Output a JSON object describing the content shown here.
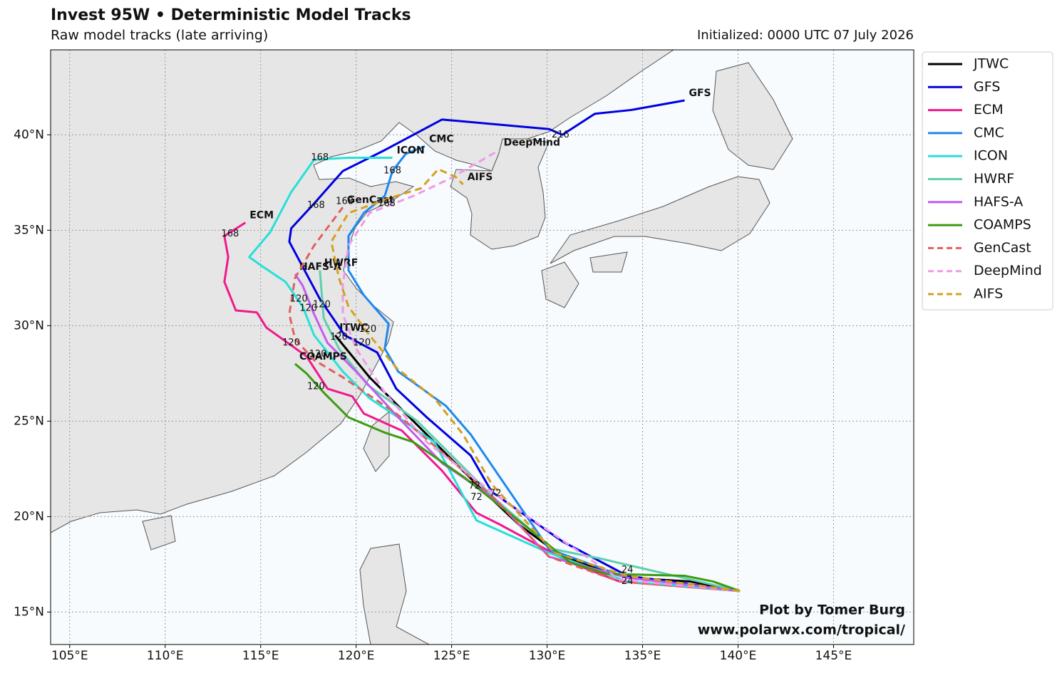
{
  "chart_data": {
    "type": "track",
    "title": "Invest 95W • Deterministic Model Tracks",
    "subtitle": "Raw model tracks (late arriving)",
    "init": "Initialized: 0000 UTC 07 July 2026",
    "credit": [
      "Plot by Tomer Burg",
      "www.polarwx.com/tropical/"
    ],
    "xlim": [
      104.0,
      149.2
    ],
    "ylim": [
      13.3,
      44.45
    ],
    "xticks": [
      {
        "value": 105,
        "label": "105°E"
      },
      {
        "value": 110,
        "label": "110°E"
      },
      {
        "value": 115,
        "label": "115°E"
      },
      {
        "value": 120,
        "label": "120°E"
      },
      {
        "value": 125,
        "label": "125°E"
      },
      {
        "value": 130,
        "label": "130°E"
      },
      {
        "value": 135,
        "label": "135°E"
      },
      {
        "value": 140,
        "label": "140°E"
      },
      {
        "value": 145,
        "label": "145°E"
      }
    ],
    "yticks": [
      {
        "value": 15,
        "label": "15°N"
      },
      {
        "value": 20,
        "label": "20°N"
      },
      {
        "value": 25,
        "label": "25°N"
      },
      {
        "value": 30,
        "label": "30°N"
      },
      {
        "value": 35,
        "label": "35°N"
      },
      {
        "value": 40,
        "label": "40°N"
      }
    ],
    "grid": true,
    "legend": "outside-right",
    "series": [
      {
        "name": "JTWC",
        "color": "#000000",
        "dash": false,
        "x": [
          140.1,
          137.5,
          134.2,
          130.8,
          128.5,
          126.7,
          123.7,
          120.7,
          118.9
        ],
        "values": [
          16.1,
          16.6,
          16.8,
          17.9,
          19.6,
          21.3,
          24.3,
          27.3,
          29.5
        ]
      },
      {
        "name": "GFS",
        "color": "#0000e0",
        "dash": false,
        "x": [
          140.1,
          134.2,
          130.8,
          128.95,
          127.1,
          126.0,
          123.7,
          122.1,
          121.1,
          119.4,
          118.1,
          116.5,
          116.6,
          117.8,
          119.3,
          121.5,
          124.5,
          130.1,
          130.8,
          132.5,
          134.4,
          137.2
        ],
        "values": [
          16.1,
          16.9,
          18.7,
          20.0,
          21.3,
          23.2,
          25.2,
          26.7,
          28.6,
          29.5,
          31.4,
          34.4,
          35.1,
          36.4,
          38.1,
          39.2,
          40.8,
          40.3,
          40.0,
          41.1,
          41.3,
          41.8
        ]
      },
      {
        "name": "ECM",
        "color": "#f0198c",
        "dash": false,
        "x": [
          140.1,
          133.8,
          131.2,
          127.5,
          126.3,
          124.5,
          122.4,
          120.4,
          119.8,
          118.5,
          117.4,
          115.3,
          114.8,
          113.7,
          113.1,
          113.3,
          113.1,
          114.2
        ],
        "values": [
          16.1,
          16.6,
          17.6,
          19.6,
          20.2,
          22.4,
          24.5,
          25.4,
          26.3,
          26.7,
          28.4,
          29.9,
          30.7,
          30.8,
          32.3,
          33.6,
          34.7,
          35.4
        ]
      },
      {
        "name": "CMC",
        "color": "#1e88f0",
        "dash": false,
        "x": [
          140.1,
          134.2,
          130.1,
          126.0,
          124.7,
          122.2,
          121.5,
          121.7,
          120.4,
          119.6,
          119.6,
          120.4,
          121.5,
          121.9,
          122.6,
          123.6
        ],
        "values": [
          16.1,
          16.8,
          18.3,
          24.3,
          25.8,
          27.6,
          28.8,
          30.1,
          31.6,
          32.9,
          34.7,
          35.9,
          36.8,
          38.1,
          39.0,
          39.4
        ]
      },
      {
        "name": "ICON",
        "color": "#26e0d8",
        "dash": false,
        "x": [
          140.1,
          134.2,
          130.1,
          126.3,
          124.1,
          122.2,
          120.7,
          119.3,
          117.8,
          117.2,
          116.3,
          115.1,
          114.4,
          115.5,
          116.6,
          117.8,
          119.6,
          121.9
        ],
        "values": [
          16.1,
          16.6,
          18.1,
          19.8,
          23.9,
          25.2,
          26.2,
          27.6,
          29.5,
          31.0,
          32.3,
          33.1,
          33.6,
          34.9,
          37.0,
          38.7,
          38.8,
          38.8
        ]
      },
      {
        "name": "HWRF",
        "color": "#5fcfb0",
        "dash": false,
        "x": [
          140.1,
          132.8,
          130.3,
          127.3,
          125.4,
          123.2,
          120.6,
          119.1,
          118.3,
          118.1
        ],
        "values": [
          16.1,
          17.8,
          18.3,
          20.9,
          22.8,
          25.0,
          26.9,
          28.8,
          30.4,
          32.9
        ]
      },
      {
        "name": "HAFS-A",
        "color": "#c35cf0",
        "dash": false,
        "x": [
          140.1,
          134.2,
          130.1,
          127.3,
          124.5,
          122.2,
          120.0,
          118.5,
          117.8,
          117.2,
          116.8
        ],
        "values": [
          16.1,
          16.8,
          17.9,
          20.9,
          22.8,
          25.2,
          27.6,
          29.1,
          30.6,
          32.1,
          32.7
        ]
      },
      {
        "name": "COAMPS",
        "color": "#3d9b12",
        "dash": false,
        "x": [
          140.1,
          138.7,
          137.2,
          133.1,
          131.2,
          129.0,
          125.6,
          123.0,
          121.5,
          119.6,
          118.3,
          117.4,
          116.8
        ],
        "values": [
          16.1,
          16.6,
          16.9,
          17.0,
          17.6,
          19.4,
          22.1,
          23.9,
          24.4,
          25.2,
          26.5,
          27.5,
          28.0
        ]
      },
      {
        "name": "GenCast",
        "color": "#e0605e",
        "dash": true,
        "x": [
          140.1,
          133.8,
          130.1,
          127.3,
          124.7,
          122.1,
          119.3,
          117.8,
          116.8,
          116.5,
          116.8,
          117.8,
          119.3
        ],
        "values": [
          16.1,
          16.6,
          17.9,
          20.9,
          23.2,
          25.4,
          27.3,
          28.2,
          29.3,
          30.6,
          32.5,
          34.2,
          36.2
        ]
      },
      {
        "name": "DeepMind",
        "color": "#f09ae8",
        "dash": true,
        "x": [
          140.1,
          133.8,
          127.1,
          123.7,
          121.5,
          120.0,
          119.3,
          119.3,
          119.6,
          120.7,
          123.0,
          124.9,
          127.5
        ],
        "values": [
          16.1,
          16.7,
          21.3,
          23.9,
          26.5,
          28.8,
          30.6,
          32.1,
          34.2,
          35.9,
          36.8,
          37.7,
          39.2
        ]
      },
      {
        "name": "AIFS",
        "color": "#d4a020",
        "dash": true,
        "x": [
          140.1,
          134.2,
          130.4,
          127.1,
          125.6,
          124.1,
          122.1,
          120.7,
          119.6,
          119.1,
          118.7,
          119.6,
          121.5,
          123.4,
          124.3,
          125.2,
          125.6
        ],
        "values": [
          16.1,
          16.9,
          18.1,
          21.7,
          24.3,
          26.2,
          27.8,
          29.5,
          31.0,
          32.5,
          34.4,
          35.9,
          36.6,
          37.2,
          38.2,
          37.8,
          37.4
        ]
      }
    ],
    "hour_labels": [
      {
        "label": "216",
        "x": 130.7,
        "y": 40.0
      },
      {
        "label": "168",
        "x": 118.1,
        "y": 38.8
      },
      {
        "label": "168",
        "x": 121.9,
        "y": 38.1
      },
      {
        "label": "168",
        "x": 117.9,
        "y": 36.3
      },
      {
        "label": "168",
        "x": 119.4,
        "y": 36.5
      },
      {
        "label": "168",
        "x": 121.6,
        "y": 36.4
      },
      {
        "label": "168",
        "x": 113.4,
        "y": 34.8
      },
      {
        "label": "120",
        "x": 117.0,
        "y": 31.4
      },
      {
        "label": "120",
        "x": 117.5,
        "y": 30.9
      },
      {
        "label": "120",
        "x": 118.2,
        "y": 31.1
      },
      {
        "label": "120",
        "x": 119.1,
        "y": 29.4
      },
      {
        "label": "120",
        "x": 120.6,
        "y": 29.8
      },
      {
        "label": "120",
        "x": 120.3,
        "y": 29.1
      },
      {
        "label": "120",
        "x": 116.6,
        "y": 29.1
      },
      {
        "label": "120",
        "x": 118.0,
        "y": 28.5
      },
      {
        "label": "120",
        "x": 117.9,
        "y": 26.8
      },
      {
        "label": "72",
        "x": 126.2,
        "y": 21.6
      },
      {
        "label": "72",
        "x": 127.3,
        "y": 21.2
      },
      {
        "label": "72",
        "x": 126.3,
        "y": 21.0
      },
      {
        "label": "24",
        "x": 134.2,
        "y": 17.2
      },
      {
        "label": "24",
        "x": 134.2,
        "y": 16.6
      }
    ]
  }
}
